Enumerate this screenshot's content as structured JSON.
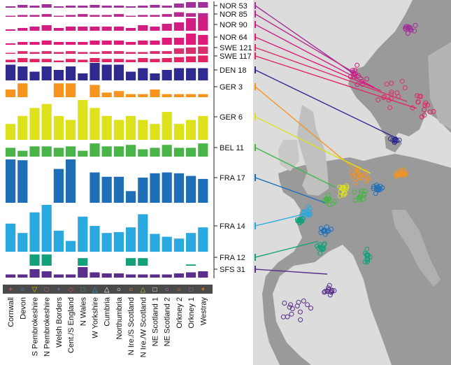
{
  "chart_data": {
    "type": "bar",
    "title": "",
    "xlabel": "",
    "ylabel": "",
    "legend": "right",
    "categories": [
      "Cornwall",
      "Devon",
      "S Pembrokeshire",
      "N Pembrokeshire",
      "Welsh Borders",
      "Cent./S England",
      "N Wales",
      "W Yorkshire",
      "Cumbria",
      "Northumbria",
      "N Ire./S Scotland",
      "N Ire./W Scotland",
      "NE Scotland 1",
      "NE Scotland 2",
      "Orkney 2",
      "Orkney 1",
      "Westray"
    ],
    "category_symbols": [
      "+",
      "○",
      "▽",
      "□",
      "+",
      "◇",
      "□",
      "△",
      "△",
      "○",
      "○",
      "△",
      "□",
      "○",
      "○",
      "□",
      "+"
    ],
    "category_symbol_colors": [
      "#e8607a",
      "#4a90d9",
      "#e8c21a",
      "#e060a0",
      "#8a6ad0",
      "#e05050",
      "#3cb04a",
      "#3a9ad8",
      "#ffffff",
      "#ffffff",
      "#f0a030",
      "#b0d030",
      "#ffffff",
      "#c080e0",
      "#e08030",
      "#a070d0",
      "#f0a030"
    ],
    "series": [
      {
        "name": "NOR 53",
        "color": "#a0309a",
        "values": [
          0.2,
          0.4,
          0.3,
          0.5,
          0.2,
          0.3,
          0.3,
          0.4,
          0.3,
          0.3,
          0.2,
          0.3,
          0.4,
          0.3,
          0.6,
          0.8,
          0.8
        ]
      },
      {
        "name": "NOR 85",
        "color": "#b82a8c",
        "values": [
          0.1,
          0.2,
          0.2,
          0.3,
          0.1,
          0.2,
          0.3,
          0.2,
          0.2,
          0.3,
          0.1,
          0.2,
          0.2,
          0.3,
          0.5,
          0.4,
          0.4
        ]
      },
      {
        "name": "NOR 90",
        "color": "#d01e82",
        "values": [
          0.1,
          0.2,
          0.3,
          0.4,
          0.2,
          0.3,
          0.3,
          0.3,
          0.3,
          0.3,
          0.2,
          0.4,
          0.3,
          0.5,
          0.6,
          0.9,
          1.0
        ]
      },
      {
        "name": "NOR 64",
        "color": "#e01a78",
        "values": [
          0.1,
          0.2,
          0.2,
          0.3,
          0.2,
          0.2,
          0.2,
          0.3,
          0.3,
          0.3,
          0.2,
          0.3,
          0.3,
          0.5,
          0.5,
          0.8,
          0.7
        ]
      },
      {
        "name": "SWE 121",
        "color": "#d8306e",
        "values": [
          0.1,
          0.3,
          0.2,
          0.3,
          0.2,
          0.3,
          0.2,
          0.2,
          0.3,
          0.3,
          0.2,
          0.2,
          0.3,
          0.3,
          0.6,
          0.7,
          0.8
        ]
      },
      {
        "name": "SWE 117",
        "color": "#e02464",
        "values": [
          0.3,
          0.5,
          0.4,
          0.4,
          0.2,
          0.4,
          0.3,
          0.5,
          0.4,
          0.4,
          0.3,
          0.5,
          0.4,
          0.5,
          0.6,
          0.7,
          0.8
        ]
      },
      {
        "name": "DEN 18",
        "color": "#2e2a90",
        "values": [
          0.9,
          0.8,
          0.5,
          0.8,
          0.6,
          0.8,
          0.4,
          1.0,
          0.9,
          0.9,
          0.5,
          0.7,
          0.4,
          0.6,
          0.7,
          0.7,
          0.7
        ]
      },
      {
        "name": "GER 3",
        "color": "#f7941d",
        "values": [
          0.5,
          0.9,
          0.0,
          0.0,
          0.9,
          0.9,
          0.0,
          0.8,
          0.3,
          0.4,
          0.2,
          0.2,
          0.5,
          0.2,
          0.2,
          0.2,
          0.2
        ]
      },
      {
        "name": "GER 6",
        "color": "#dde21c",
        "values": [
          0.4,
          0.6,
          0.8,
          0.9,
          0.6,
          0.5,
          1.0,
          0.8,
          0.6,
          0.5,
          0.6,
          0.5,
          0.4,
          0.7,
          0.4,
          0.5,
          0.6
        ]
      },
      {
        "name": "BEL 11",
        "color": "#49b548",
        "values": [
          0.6,
          0.4,
          0.7,
          0.7,
          0.6,
          0.7,
          0.4,
          0.9,
          0.7,
          0.7,
          0.8,
          0.5,
          0.6,
          0.8,
          0.6,
          0.6,
          0.9
        ]
      },
      {
        "name": "FRA 17",
        "color": "#1f6fb8",
        "values": [
          1.0,
          0.98,
          0.0,
          0.0,
          0.78,
          1.0,
          0.0,
          0.7,
          0.6,
          0.6,
          0.27,
          0.58,
          0.68,
          0.7,
          0.68,
          0.62,
          0.55
        ]
      },
      {
        "name": "FRA 14",
        "color": "#29a9e0",
        "values": [
          0.6,
          0.4,
          0.84,
          1.0,
          0.45,
          0.23,
          0.75,
          0.55,
          0.4,
          0.42,
          0.52,
          0.8,
          0.38,
          0.32,
          0.28,
          0.4,
          0.52
        ]
      },
      {
        "name": "FRA 12",
        "color": "#13a07a",
        "values": [
          0.0,
          0.0,
          0.9,
          0.9,
          0.0,
          0.0,
          0.6,
          0.0,
          0.0,
          0.0,
          0.6,
          0.6,
          0.0,
          0.0,
          0.0,
          0.1,
          0.0
        ]
      },
      {
        "name": "SFS 31",
        "color": "#5a2e8a",
        "values": [
          0.3,
          0.3,
          0.8,
          0.6,
          0.3,
          0.3,
          1.0,
          0.5,
          0.4,
          0.4,
          0.3,
          0.3,
          0.3,
          0.3,
          0.4,
          0.5,
          0.6
        ]
      }
    ]
  }
}
